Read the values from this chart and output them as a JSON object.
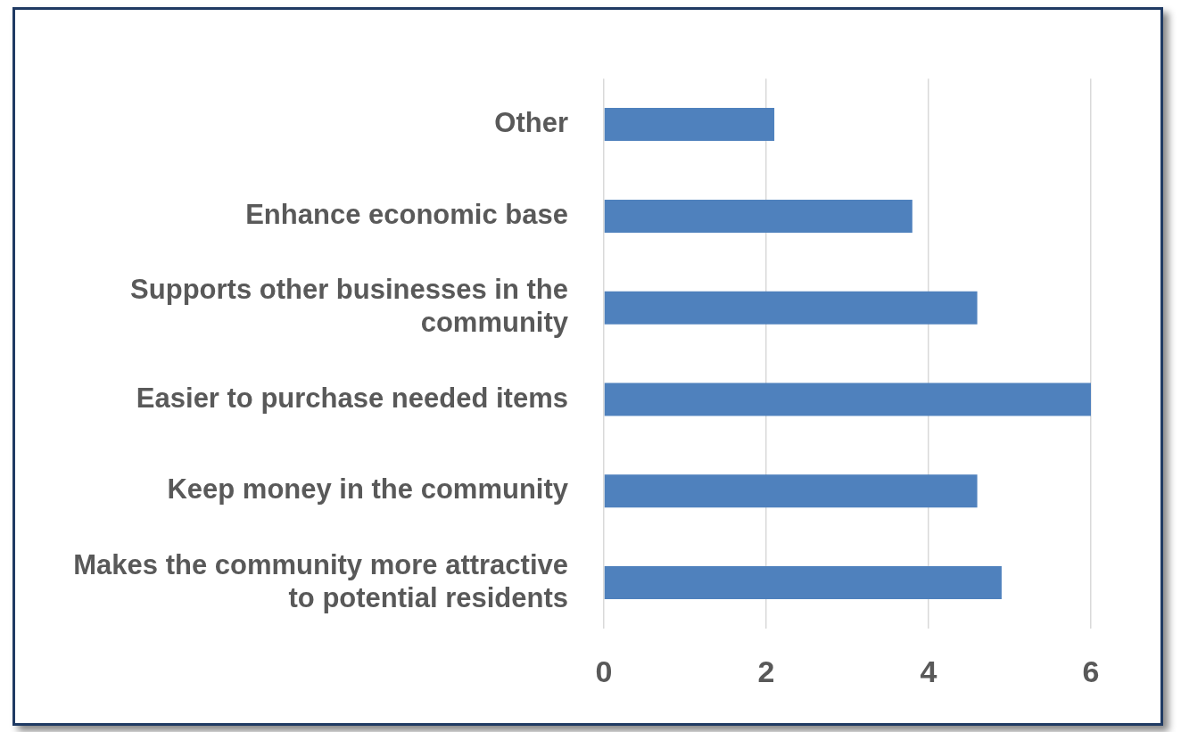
{
  "chart_data": {
    "type": "bar",
    "orientation": "horizontal",
    "categories": [
      "Other",
      "Enhance economic base",
      "Supports other businesses in the community",
      "Easier to purchase needed items",
      "Keep money in the community",
      "Makes the community more attractive to potential residents"
    ],
    "values": [
      2.1,
      3.8,
      4.6,
      6,
      4.6,
      4.9
    ],
    "color": "#4f81bd",
    "xlim": [
      0,
      6
    ],
    "xticks": [
      0,
      2,
      4,
      6
    ],
    "grid": "x"
  }
}
